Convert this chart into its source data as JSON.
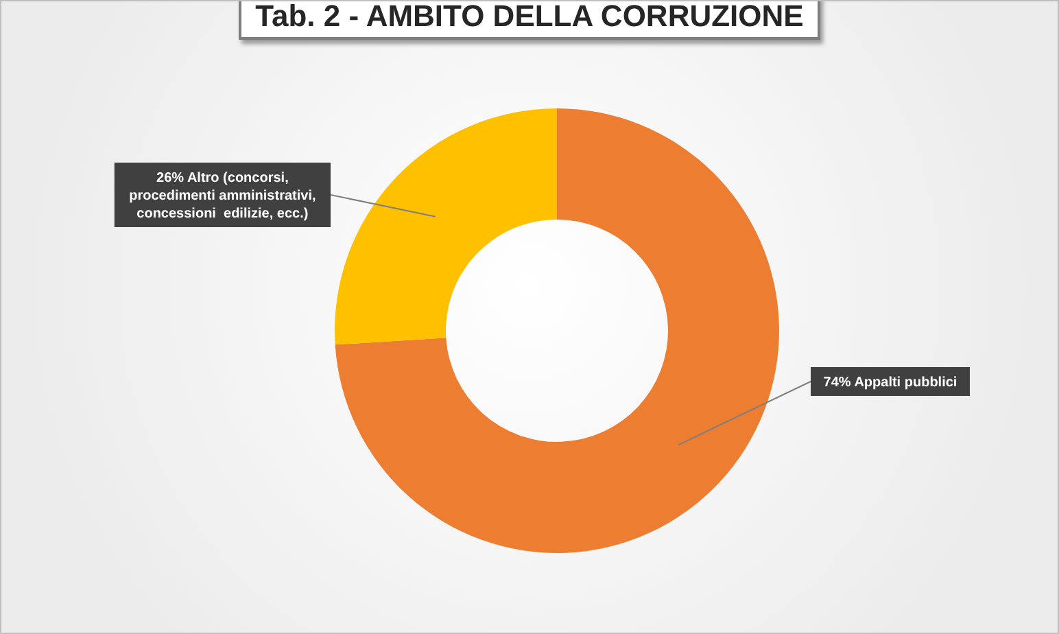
{
  "chart_data": {
    "type": "donut",
    "title": "Tab. 2 - AMBITO DELLA CORRUZIONE",
    "categories": [
      "Appalti pubblici",
      "Altro (concorsi, procedimenti amministrativi, concessioni  edilizie, ecc.)"
    ],
    "values": [
      74,
      26
    ],
    "value_labels": [
      "74%",
      "26%"
    ],
    "colors": [
      "#ed7d31",
      "#ffc000"
    ],
    "legend": false
  }
}
